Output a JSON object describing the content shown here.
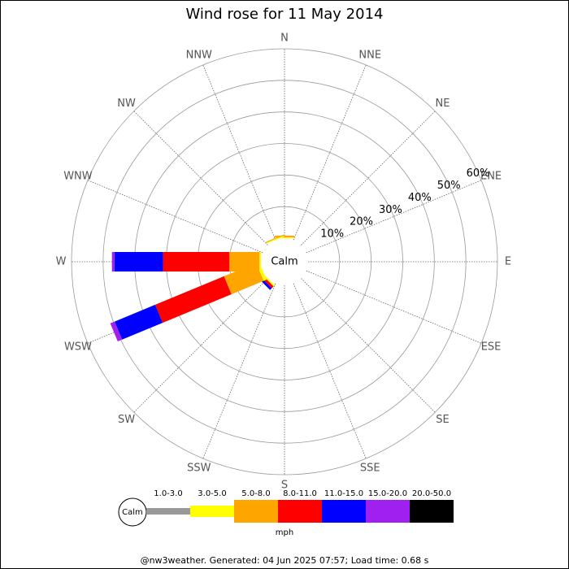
{
  "chart_data": {
    "type": "windrose",
    "title": "Wind rose for 11 May 2014",
    "directions": [
      "N",
      "NNE",
      "NE",
      "ENE",
      "E",
      "ESE",
      "SE",
      "SSE",
      "S",
      "SSW",
      "SW",
      "WSW",
      "W",
      "WNW",
      "NW",
      "NNW"
    ],
    "calm_label": "Calm",
    "rlim": [
      0,
      60
    ],
    "rticks": [
      {
        "value": 10,
        "label": "10%"
      },
      {
        "value": 20,
        "label": "20%"
      },
      {
        "value": 30,
        "label": "30%"
      },
      {
        "value": 40,
        "label": "40%"
      },
      {
        "value": 50,
        "label": "50%"
      },
      {
        "value": 60,
        "label": "60%"
      }
    ],
    "units": "mph",
    "series": [
      {
        "name": "1.0-3.0",
        "color": "#999999",
        "values": [
          0,
          0,
          0,
          0,
          0,
          0,
          0,
          0,
          0,
          0,
          0,
          0,
          0,
          0,
          0,
          0
        ]
      },
      {
        "name": "3.0-5.0",
        "color": "#ffff00",
        "values": [
          0.3,
          0,
          0,
          0,
          0,
          0,
          0,
          0,
          0,
          0,
          0.5,
          1,
          0.5,
          0,
          0,
          0.3
        ]
      },
      {
        "name": "5.0-8.0",
        "color": "#ffa500",
        "values": [
          0.5,
          0,
          0,
          0,
          0,
          0,
          0,
          0,
          0,
          0,
          0,
          11,
          9.5,
          0,
          0,
          0.3
        ]
      },
      {
        "name": "8.0-11.0",
        "color": "#ff0000",
        "values": [
          0,
          0,
          0,
          0,
          0,
          0,
          0,
          0,
          0,
          0,
          0.8,
          23.6,
          21,
          0,
          0,
          0
        ]
      },
      {
        "name": "11.0-15.0",
        "color": "#0000ff",
        "values": [
          0,
          0,
          0,
          0,
          0,
          0,
          0,
          0,
          0,
          0,
          0.8,
          13.9,
          15.4,
          0,
          0,
          0
        ]
      },
      {
        "name": "15.0-20.0",
        "color": "#a020f0",
        "values": [
          0,
          0,
          0,
          0,
          0,
          0,
          0,
          0,
          0,
          0,
          0,
          1.5,
          0.8,
          0,
          0,
          0
        ]
      },
      {
        "name": "20.0-50.0",
        "color": "#000000",
        "values": [
          0,
          0,
          0,
          0,
          0,
          0,
          0,
          0,
          0,
          0,
          0,
          0,
          0,
          0,
          0,
          0
        ]
      }
    ],
    "footer": "@nw3weather. Generated: 04 Jun 2025 07:57; Load time: 0.68 s"
  }
}
